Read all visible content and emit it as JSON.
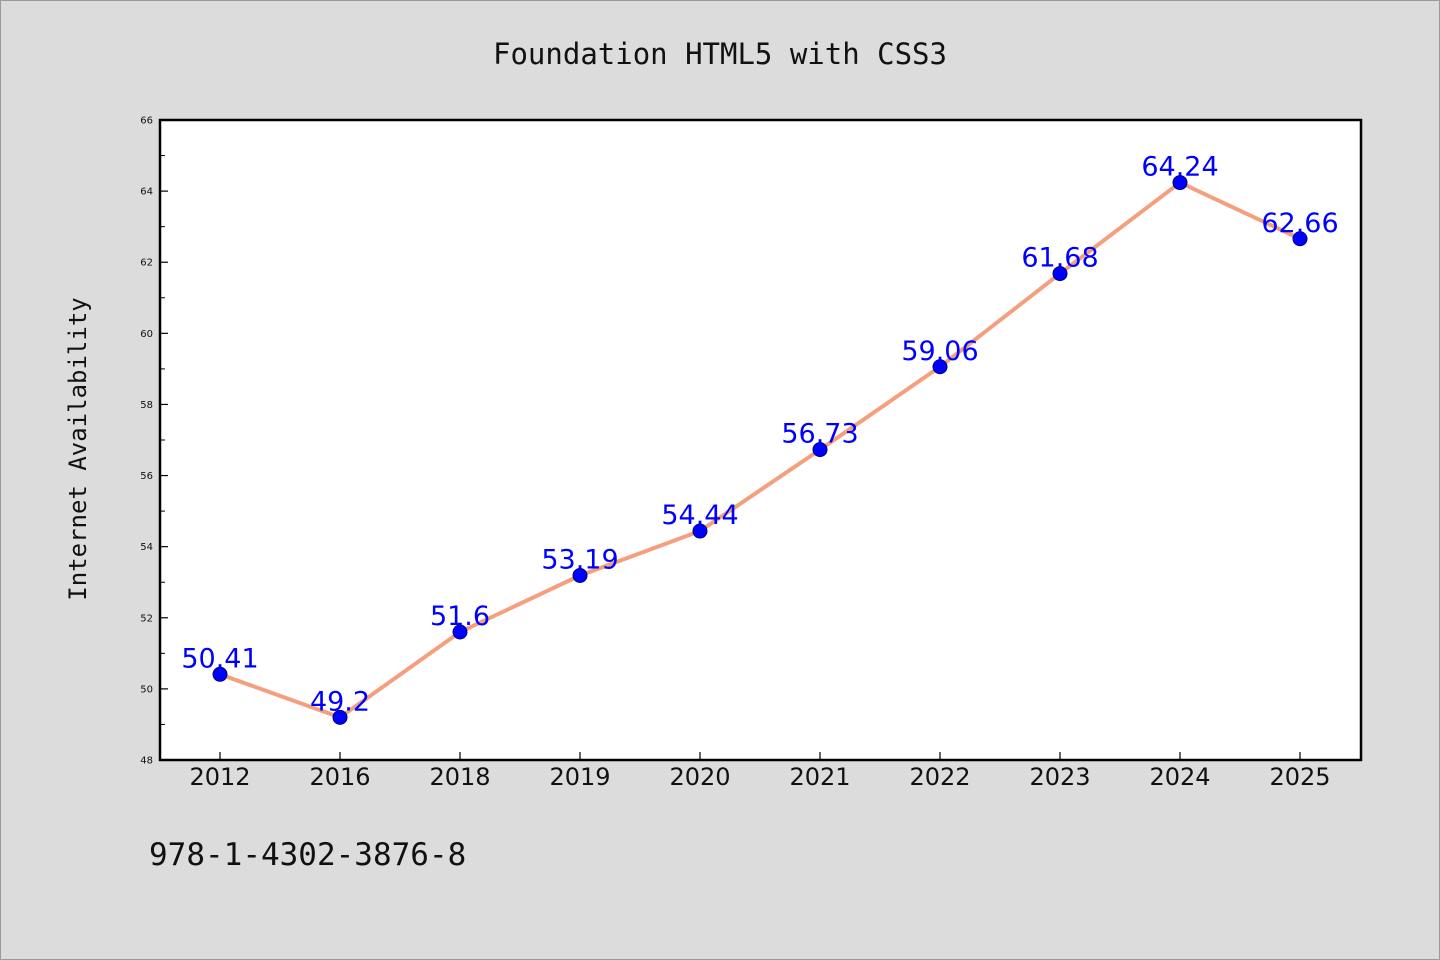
{
  "chart_data": {
    "type": "line",
    "title": "Foundation HTML5 with CSS3",
    "xlabel": "",
    "ylabel": "Internet Availability",
    "footer": "978-1-4302-3876-8",
    "categories": [
      "2012",
      "2016",
      "2018",
      "2019",
      "2020",
      "2021",
      "2022",
      "2023",
      "2024",
      "2025"
    ],
    "series": [
      {
        "values": [
          50.41,
          49.2,
          51.6,
          53.19,
          54.44,
          56.73,
          59.06,
          61.68,
          64.24,
          62.66
        ],
        "labels": [
          "50.41",
          "49.2",
          "51.6",
          "53.19",
          "54.44",
          "56.73",
          "59.06",
          "61.68",
          "64.24",
          "62.66"
        ]
      }
    ],
    "ylim": [
      48,
      66
    ],
    "yticks": [
      "48",
      "50",
      "52",
      "54",
      "56",
      "58",
      "60",
      "62",
      "64",
      "66"
    ],
    "grid": false,
    "legend": "none",
    "colors": {
      "line": "#f4a07e",
      "marker": "#0000ff",
      "label": "#0000ff",
      "background": "#dcdcdc",
      "plot_background": "#ffffff"
    }
  }
}
